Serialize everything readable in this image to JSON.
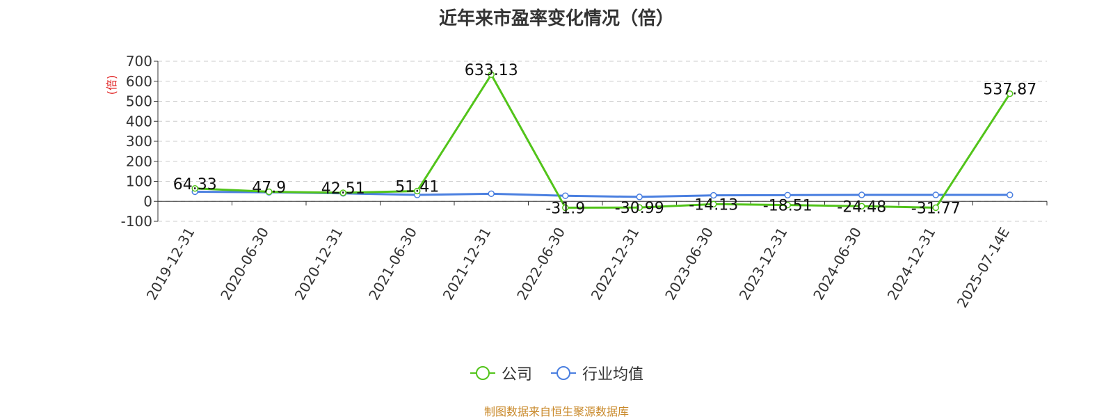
{
  "chart_data": {
    "type": "line",
    "title": "近年来市盈率变化情况（倍）",
    "ylabel": "(倍)",
    "xlabel": "",
    "categories": [
      "2019-12-31",
      "2020-06-30",
      "2020-12-31",
      "2021-06-30",
      "2021-12-31",
      "2022-06-30",
      "2022-12-31",
      "2023-06-30",
      "2023-12-31",
      "2024-06-30",
      "2024-12-31",
      "2025-07-14E"
    ],
    "ylim": [
      -100,
      700
    ],
    "yticks": [
      700,
      600,
      500,
      400,
      300,
      200,
      100,
      0,
      -100
    ],
    "grid": true,
    "legend_position": "bottom-center",
    "series": [
      {
        "name": "公司",
        "color": "#52c41a",
        "values": [
          64.33,
          47.9,
          42.51,
          51.41,
          633.13,
          -31.9,
          -30.99,
          -14.13,
          -18.51,
          -24.48,
          -31.77,
          537.87
        ],
        "labels": [
          "64.33",
          "47.9",
          "42.51",
          "51.41",
          "633.13",
          "-31.9",
          "-30.99",
          "-14.13",
          "-18.51",
          "-24.48",
          "-31.77",
          "537.87"
        ]
      },
      {
        "name": "行业均值",
        "color": "#4a7fe0",
        "values": [
          48,
          45,
          40,
          32,
          38,
          28,
          22,
          30,
          31,
          32,
          32,
          32
        ]
      }
    ]
  },
  "source_note": "制图数据来自恒生聚源数据库"
}
